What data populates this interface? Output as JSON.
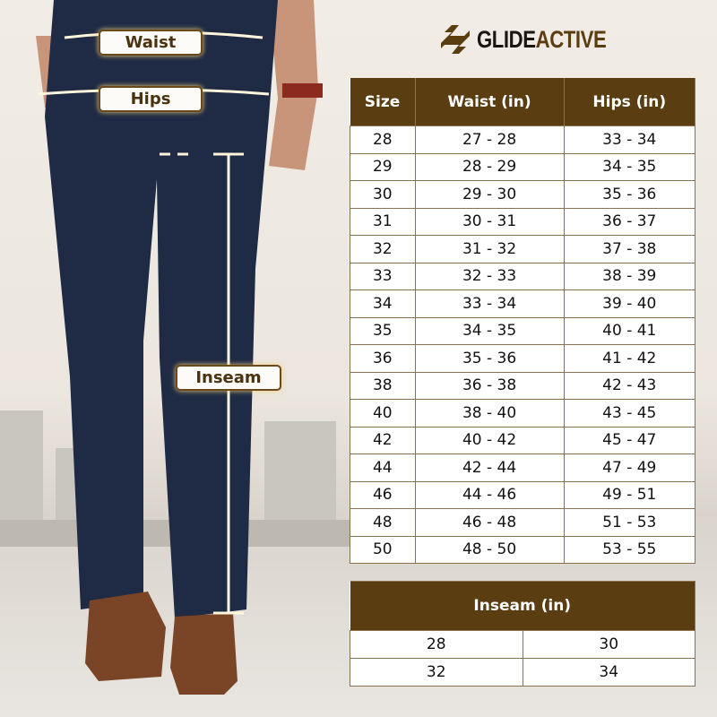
{
  "brand": {
    "name_part1": "GLIDE",
    "name_part2": "ACTIVE",
    "logo_icon": "stylized-s-icon",
    "color": "#5b3d12"
  },
  "measure_labels": {
    "waist": "Waist",
    "hips": "Hips",
    "inseam": "Inseam"
  },
  "size_table": {
    "headers": [
      "Size",
      "Waist (in)",
      "Hips (in)"
    ],
    "rows": [
      [
        "28",
        "27 - 28",
        "33 - 34"
      ],
      [
        "29",
        "28 - 29",
        "34 - 35"
      ],
      [
        "30",
        "29 - 30",
        "35 - 36"
      ],
      [
        "31",
        "30 - 31",
        "36 - 37"
      ],
      [
        "32",
        "31 - 32",
        "37 - 38"
      ],
      [
        "33",
        "32 - 33",
        "38 - 39"
      ],
      [
        "34",
        "33 - 34",
        "39 - 40"
      ],
      [
        "35",
        "34 - 35",
        "40 - 41"
      ],
      [
        "36",
        "35 - 36",
        "41 - 42"
      ],
      [
        "38",
        "36 - 38",
        "42 - 43"
      ],
      [
        "40",
        "38 - 40",
        "43 - 45"
      ],
      [
        "42",
        "40 - 42",
        "45 - 47"
      ],
      [
        "44",
        "42 - 44",
        "47 - 49"
      ],
      [
        "46",
        "44 - 46",
        "49 - 51"
      ],
      [
        "48",
        "46 - 48",
        "51 - 53"
      ],
      [
        "50",
        "48 - 50",
        "53 - 55"
      ]
    ]
  },
  "inseam_table": {
    "header": "Inseam (in)",
    "rows": [
      [
        "28",
        "30"
      ],
      [
        "32",
        "34"
      ]
    ]
  },
  "colors": {
    "header_bg": "#5b3d12",
    "pants": "#1f2a44",
    "background": "#ebe6de"
  }
}
